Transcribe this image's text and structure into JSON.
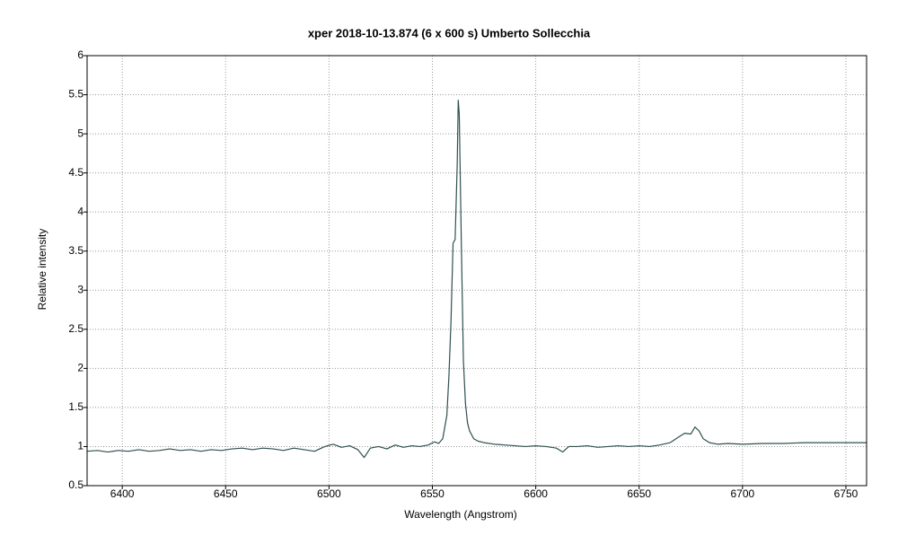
{
  "chart_data": {
    "type": "line",
    "title": "xper   2018-10-13.874  (6 x 600 s)   Umberto Sollecchia",
    "x_label": "Wavelength (Angstrom)",
    "y_label": "Relative intensity",
    "color": "#2f4f4f",
    "grid": true,
    "xlim": [
      6383,
      6760
    ],
    "ylim": [
      0.5,
      6
    ],
    "xticks": [
      6400,
      6450,
      6500,
      6550,
      6600,
      6650,
      6700,
      6750
    ],
    "yticks": [
      0.5,
      1,
      1.5,
      2,
      2.5,
      3,
      3.5,
      4,
      4.5,
      5,
      5.5,
      6
    ],
    "x": [
      6383,
      6388,
      6393,
      6398,
      6403,
      6408,
      6413,
      6418,
      6423,
      6428,
      6433,
      6438,
      6443,
      6448,
      6453,
      6458,
      6463,
      6468,
      6473,
      6478,
      6483,
      6488,
      6493,
      6498,
      6502,
      6506,
      6510,
      6514,
      6517,
      6520,
      6524,
      6528,
      6532,
      6536,
      6540,
      6544,
      6548,
      6551,
      6553,
      6555,
      6557,
      6558,
      6559,
      6560,
      6561,
      6562,
      6562.5,
      6563,
      6564,
      6565,
      6566,
      6567,
      6568,
      6570,
      6572,
      6575,
      6580,
      6585,
      6590,
      6595,
      6600,
      6605,
      6610,
      6613,
      6616,
      6620,
      6625,
      6630,
      6635,
      6640,
      6645,
      6650,
      6655,
      6660,
      6665,
      6669,
      6672,
      6675,
      6677,
      6679,
      6681,
      6684,
      6688,
      6693,
      6700,
      6710,
      6720,
      6730,
      6740,
      6750,
      6760
    ],
    "values": [
      0.94,
      0.95,
      0.93,
      0.95,
      0.94,
      0.96,
      0.94,
      0.95,
      0.97,
      0.95,
      0.96,
      0.94,
      0.96,
      0.95,
      0.97,
      0.98,
      0.96,
      0.98,
      0.97,
      0.95,
      0.98,
      0.96,
      0.94,
      1.0,
      1.03,
      0.99,
      1.01,
      0.96,
      0.86,
      0.98,
      1.0,
      0.97,
      1.02,
      0.99,
      1.01,
      1.0,
      1.02,
      1.06,
      1.04,
      1.1,
      1.4,
      1.9,
      2.6,
      3.6,
      3.65,
      4.6,
      5.43,
      5.25,
      3.6,
      2.1,
      1.55,
      1.3,
      1.2,
      1.1,
      1.07,
      1.05,
      1.03,
      1.02,
      1.01,
      1.0,
      1.01,
      1.0,
      0.98,
      0.93,
      1.0,
      1.0,
      1.01,
      0.99,
      1.0,
      1.01,
      1.0,
      1.01,
      1.0,
      1.02,
      1.05,
      1.12,
      1.17,
      1.16,
      1.25,
      1.2,
      1.1,
      1.05,
      1.03,
      1.04,
      1.03,
      1.04,
      1.04,
      1.05,
      1.05,
      1.05,
      1.05
    ]
  }
}
